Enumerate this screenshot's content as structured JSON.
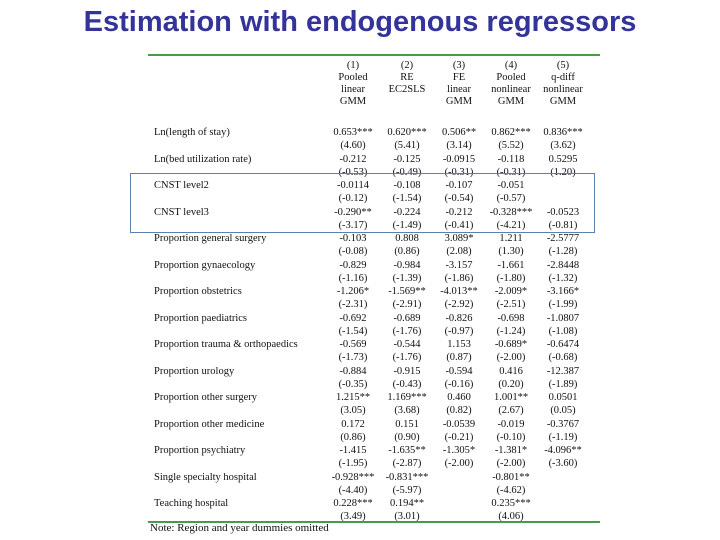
{
  "title": "Estimation with endogenous regressors",
  "columns": [
    [
      "(1)",
      "Pooled",
      "linear",
      "GMM"
    ],
    [
      "(2)",
      "RE",
      "EC2SLS",
      ""
    ],
    [
      "(3)",
      "FE",
      "linear",
      "GMM"
    ],
    [
      "(4)",
      "Pooled",
      "nonlinear",
      "GMM"
    ],
    [
      "(5)",
      "q-diff",
      "nonlinear",
      "GMM"
    ]
  ],
  "rows": [
    {
      "label": "Ln(length of stay)",
      "values": [
        "0.653***",
        "0.620***",
        "0.506**",
        "0.862***",
        "0.836***"
      ]
    },
    {
      "label": "",
      "values": [
        "(4.60)",
        "(5.41)",
        "(3.14)",
        "(5.52)",
        "(3.62)"
      ]
    },
    {
      "label": "Ln(bed utilization rate)",
      "values": [
        "-0.212",
        "-0.125",
        "-0.0915",
        "-0.118",
        "0.5295"
      ]
    },
    {
      "label": "",
      "values": [
        "(-0.53)",
        "(-0.49)",
        "(-0.31)",
        "(-0.31)",
        "(1.20)"
      ]
    },
    {
      "label": "CNST level2",
      "values": [
        "-0.0114",
        "-0.108",
        "-0.107",
        "-0.051",
        ""
      ]
    },
    {
      "label": "",
      "values": [
        "(-0.12)",
        "(-1.54)",
        "(-0.54)",
        "(-0.57)",
        ""
      ]
    },
    {
      "label": "CNST level3",
      "values": [
        "-0.290**",
        "-0.224",
        "-0.212",
        "-0.328***",
        "-0.0523"
      ]
    },
    {
      "label": "",
      "values": [
        "(-3.17)",
        "(-1.49)",
        "(-0.41)",
        "(-4.21)",
        "(-0.81)"
      ]
    },
    {
      "label": "Proportion general surgery",
      "values": [
        "-0.103",
        "0.808",
        "3.089*",
        "1.211",
        "-2.5777"
      ]
    },
    {
      "label": "",
      "values": [
        "(-0.08)",
        "(0.86)",
        "(2.08)",
        "(1.30)",
        "(-1.28)"
      ]
    },
    {
      "label": "Proportion gynaecology",
      "values": [
        "-0.829",
        "-0.984",
        "-3.157",
        "-1.661",
        "-2.8448"
      ]
    },
    {
      "label": "",
      "values": [
        "(-1.16)",
        "(-1.39)",
        "(-1.86)",
        "(-1.80)",
        "(-1.32)"
      ]
    },
    {
      "label": "Proportion obstetrics",
      "values": [
        "-1.206*",
        "-1.569**",
        "-4.013**",
        "-2.009*",
        "-3.166*"
      ]
    },
    {
      "label": "",
      "values": [
        "(-2.31)",
        "(-2.91)",
        "(-2.92)",
        "(-2.51)",
        "(-1.99)"
      ]
    },
    {
      "label": "Proportion paediatrics",
      "values": [
        "-0.692",
        "-0.689",
        "-0.826",
        "-0.698",
        "-1.0807"
      ]
    },
    {
      "label": "",
      "values": [
        "(-1.54)",
        "(-1.76)",
        "(-0.97)",
        "(-1.24)",
        "(-1.08)"
      ]
    },
    {
      "label": "Proportion trauma & orthopaedics",
      "values": [
        "-0.569",
        "-0.544",
        "1.153",
        "-0.689*",
        "-0.6474"
      ]
    },
    {
      "label": "",
      "values": [
        "(-1.73)",
        "(-1.76)",
        "(0.87)",
        "(-2.00)",
        "(-0.68)"
      ]
    },
    {
      "label": "Proportion urology",
      "values": [
        "-0.884",
        "-0.915",
        "-0.594",
        "0.416",
        "-12.387"
      ]
    },
    {
      "label": "",
      "values": [
        "(-0.35)",
        "(-0.43)",
        "(-0.16)",
        "(0.20)",
        "(-1.89)"
      ]
    },
    {
      "label": "Proportion other surgery",
      "values": [
        "1.215**",
        "1.169***",
        "0.460",
        "1.001**",
        "0.0501"
      ]
    },
    {
      "label": "",
      "values": [
        "(3.05)",
        "(3.68)",
        "(0.82)",
        "(2.67)",
        "(0.05)"
      ]
    },
    {
      "label": "Proportion other medicine",
      "values": [
        "0.172",
        "0.151",
        "-0.0539",
        "-0.019",
        "-0.3767"
      ]
    },
    {
      "label": "",
      "values": [
        "(0.86)",
        "(0.90)",
        "(-0.21)",
        "(-0.10)",
        "(-1.19)"
      ]
    },
    {
      "label": "Proportion psychiatry",
      "values": [
        "-1.415",
        "-1.635**",
        "-1.305*",
        "-1.381*",
        "-4.096**"
      ]
    },
    {
      "label": "",
      "values": [
        "(-1.95)",
        "(-2.87)",
        "(-2.00)",
        "(-2.00)",
        "(-3.60)"
      ]
    },
    {
      "label": "Single specialty hospital",
      "values": [
        "-0.928***",
        "-0.831***",
        "",
        "-0.801**",
        ""
      ]
    },
    {
      "label": "",
      "values": [
        "(-4.40)",
        "(-5.97)",
        "",
        "(-4.62)",
        ""
      ]
    },
    {
      "label": "Teaching hospital",
      "values": [
        "0.228***",
        "0.194**",
        "",
        "0.235***",
        ""
      ]
    },
    {
      "label": "",
      "values": [
        "(3.49)",
        "(3.01)",
        "",
        "(4.06)",
        ""
      ]
    }
  ],
  "note": "Note: Region and year dummies omitted",
  "colors": {
    "title": "#33339a",
    "rule": "#4a9a4a",
    "highlight_border": "#5b7fae"
  }
}
